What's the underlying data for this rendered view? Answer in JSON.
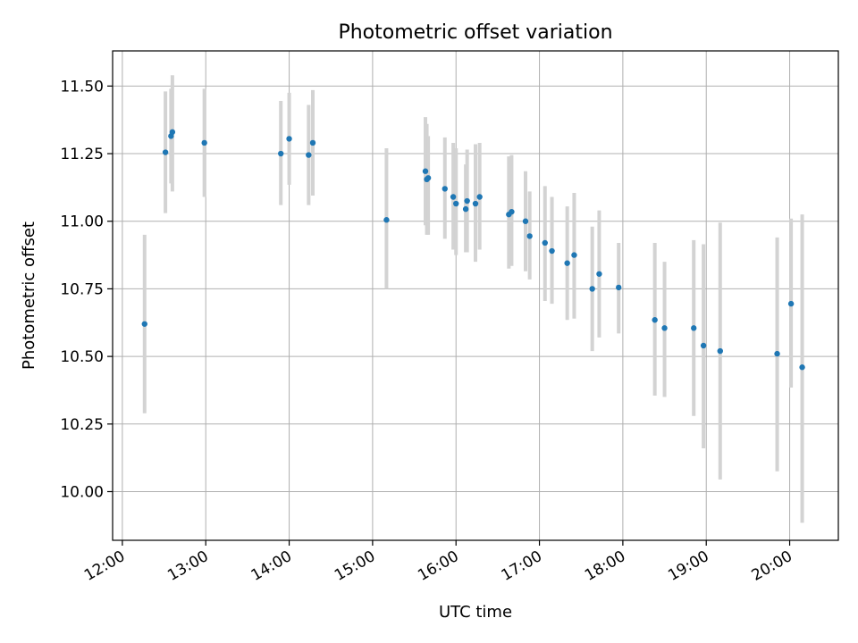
{
  "chart_data": {
    "type": "scatter",
    "title": "Photometric offset variation",
    "xlabel": "UTC time",
    "ylabel": "Photometric offset",
    "xlim": [
      "11:53",
      "20:35"
    ],
    "ylim": [
      9.82,
      11.63
    ],
    "x_ticks": [
      "12:00",
      "13:00",
      "14:00",
      "15:00",
      "16:00",
      "17:00",
      "18:00",
      "19:00",
      "20:00"
    ],
    "y_ticks": [
      "10.00",
      "10.25",
      "10.50",
      "10.75",
      "11.00",
      "11.25",
      "11.50"
    ],
    "grid": true,
    "colors": {
      "points": "#1f77b4",
      "error_bars": "#d3d3d3",
      "grid": "#b0b0b0"
    },
    "series": [
      {
        "x": [
          "12:16",
          "12:31",
          "12:35",
          "12:36",
          "12:59",
          "13:54",
          "14:00",
          "14:14",
          "14:17",
          "15:10",
          "15:38",
          "15:39",
          "15:40",
          "15:52",
          "15:58",
          "16:00",
          "16:07",
          "16:08",
          "16:14",
          "16:17",
          "16:38",
          "16:40",
          "16:50",
          "16:53",
          "17:04",
          "17:09",
          "17:20",
          "17:25",
          "17:38",
          "17:43",
          "17:57",
          "18:23",
          "18:30",
          "18:51",
          "18:58",
          "19:10",
          "19:51",
          "20:01",
          "20:09"
        ],
        "y": [
          10.62,
          11.255,
          11.315,
          11.33,
          11.29,
          11.25,
          11.305,
          11.245,
          11.29,
          11.005,
          11.185,
          11.155,
          11.16,
          11.12,
          11.09,
          11.065,
          11.045,
          11.075,
          11.065,
          11.09,
          11.025,
          11.035,
          11.0,
          10.945,
          10.92,
          10.89,
          10.845,
          10.875,
          10.75,
          10.805,
          10.755,
          10.635,
          10.605,
          10.605,
          10.54,
          10.52,
          10.51,
          10.695,
          10.46
        ],
        "yerr_low": [
          10.29,
          11.03,
          11.14,
          11.11,
          11.09,
          11.06,
          11.135,
          11.06,
          11.095,
          10.75,
          10.985,
          10.95,
          10.95,
          10.935,
          10.895,
          10.875,
          10.885,
          10.885,
          10.85,
          10.895,
          10.825,
          10.835,
          10.815,
          10.785,
          10.705,
          10.695,
          10.635,
          10.64,
          10.52,
          10.57,
          10.585,
          10.355,
          10.35,
          10.28,
          10.16,
          10.045,
          10.075,
          10.385,
          9.885
        ],
        "yerr_high": [
          10.95,
          11.48,
          11.49,
          11.54,
          11.49,
          11.445,
          11.475,
          11.43,
          11.485,
          11.27,
          11.385,
          11.36,
          11.315,
          11.31,
          11.29,
          11.27,
          11.21,
          11.265,
          11.285,
          11.29,
          11.24,
          11.245,
          11.185,
          11.11,
          11.13,
          11.09,
          11.055,
          11.105,
          10.98,
          11.04,
          10.92,
          10.92,
          10.85,
          10.93,
          10.915,
          10.995,
          10.94,
          11.01,
          11.025
        ]
      }
    ]
  }
}
